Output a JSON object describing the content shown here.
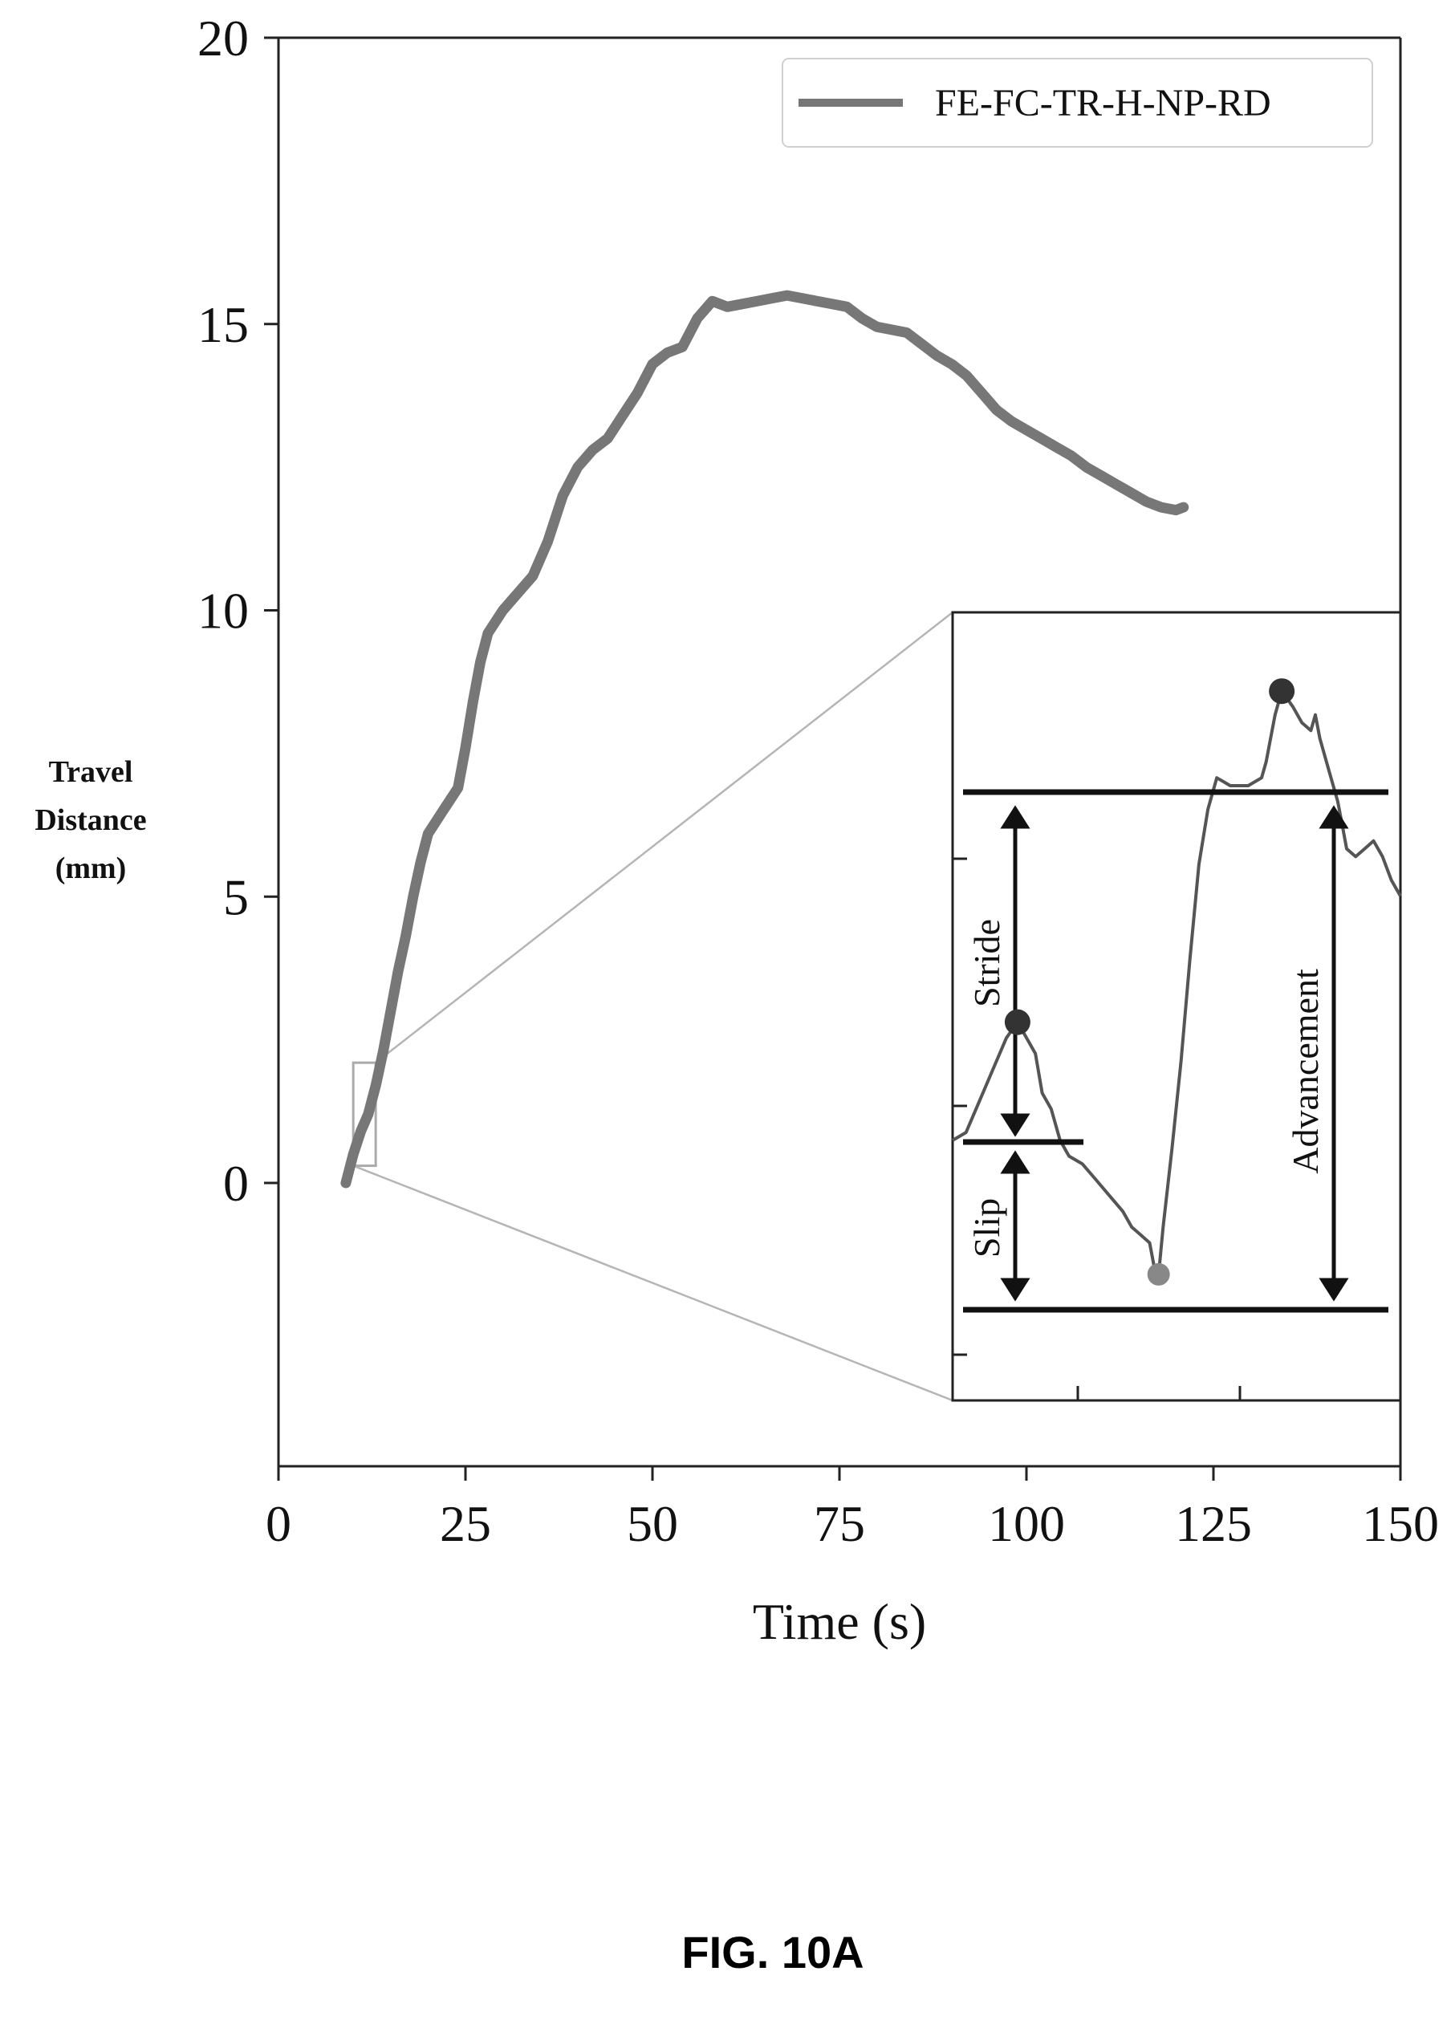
{
  "chart_data": {
    "type": "line",
    "title": "",
    "xlabel": "Time (s)",
    "ylabel": [
      "Travel",
      "Distance",
      "(mm)"
    ],
    "xlim": [
      0,
      150
    ],
    "ylim": [
      -5,
      20
    ],
    "xticks": [
      "0",
      "25",
      "50",
      "75",
      "100",
      "125",
      "150"
    ],
    "yticks": [
      "0",
      "5",
      "10",
      "15",
      "20"
    ],
    "grid": false,
    "legend_position": "top-right",
    "series": [
      {
        "name": "FE-FC-TR-H-NP-RD",
        "color": "#777777",
        "points": [
          [
            9,
            0.0
          ],
          [
            10,
            0.5
          ],
          [
            11,
            0.9
          ],
          [
            12,
            1.2
          ],
          [
            13,
            1.7
          ],
          [
            14,
            2.3
          ],
          [
            15,
            3.0
          ],
          [
            16,
            3.7
          ],
          [
            17,
            4.3
          ],
          [
            18,
            5.0
          ],
          [
            19,
            5.6
          ],
          [
            20,
            6.1
          ],
          [
            22,
            6.5
          ],
          [
            24,
            6.9
          ],
          [
            25,
            7.6
          ],
          [
            26,
            8.4
          ],
          [
            27,
            9.1
          ],
          [
            28,
            9.6
          ],
          [
            30,
            10.0
          ],
          [
            32,
            10.3
          ],
          [
            34,
            10.6
          ],
          [
            36,
            11.2
          ],
          [
            38,
            12.0
          ],
          [
            40,
            12.5
          ],
          [
            42,
            12.8
          ],
          [
            44,
            13.0
          ],
          [
            46,
            13.4
          ],
          [
            48,
            13.8
          ],
          [
            50,
            14.3
          ],
          [
            52,
            14.5
          ],
          [
            54,
            14.6
          ],
          [
            56,
            15.1
          ],
          [
            58,
            15.4
          ],
          [
            60,
            15.3
          ],
          [
            62,
            15.35
          ],
          [
            64,
            15.4
          ],
          [
            66,
            15.45
          ],
          [
            68,
            15.5
          ],
          [
            70,
            15.45
          ],
          [
            72,
            15.4
          ],
          [
            74,
            15.35
          ],
          [
            76,
            15.3
          ],
          [
            78,
            15.1
          ],
          [
            80,
            14.95
          ],
          [
            82,
            14.9
          ],
          [
            84,
            14.85
          ],
          [
            86,
            14.65
          ],
          [
            88,
            14.45
          ],
          [
            90,
            14.3
          ],
          [
            92,
            14.1
          ],
          [
            94,
            13.8
          ],
          [
            96,
            13.5
          ],
          [
            98,
            13.3
          ],
          [
            100,
            13.15
          ],
          [
            102,
            13.0
          ],
          [
            104,
            12.85
          ],
          [
            106,
            12.7
          ],
          [
            108,
            12.5
          ],
          [
            110,
            12.35
          ],
          [
            112,
            12.2
          ],
          [
            114,
            12.05
          ],
          [
            116,
            11.9
          ],
          [
            118,
            11.8
          ],
          [
            120,
            11.75
          ],
          [
            121,
            11.8
          ]
        ]
      }
    ],
    "inset": {
      "type": "line",
      "zoom_region": {
        "x": [
          10,
          13
        ],
        "y": [
          0.3,
          2.1
        ]
      },
      "annotations": [
        "Stride",
        "Slip",
        "Advancement"
      ],
      "trace": [
        [
          0.0,
          0.33
        ],
        [
          0.03,
          0.34
        ],
        [
          0.06,
          0.38
        ],
        [
          0.09,
          0.42
        ],
        [
          0.12,
          0.46
        ],
        [
          0.145,
          0.48
        ],
        [
          0.165,
          0.46
        ],
        [
          0.185,
          0.44
        ],
        [
          0.2,
          0.39
        ],
        [
          0.22,
          0.37
        ],
        [
          0.24,
          0.33
        ],
        [
          0.26,
          0.31
        ],
        [
          0.29,
          0.3
        ],
        [
          0.32,
          0.28
        ],
        [
          0.35,
          0.26
        ],
        [
          0.38,
          0.24
        ],
        [
          0.4,
          0.22
        ],
        [
          0.42,
          0.21
        ],
        [
          0.44,
          0.2
        ],
        [
          0.45,
          0.17
        ],
        [
          0.46,
          0.16
        ],
        [
          0.47,
          0.22
        ],
        [
          0.49,
          0.32
        ],
        [
          0.51,
          0.43
        ],
        [
          0.53,
          0.56
        ],
        [
          0.55,
          0.68
        ],
        [
          0.57,
          0.75
        ],
        [
          0.59,
          0.79
        ],
        [
          0.62,
          0.78
        ],
        [
          0.66,
          0.78
        ],
        [
          0.69,
          0.79
        ],
        [
          0.7,
          0.81
        ],
        [
          0.71,
          0.84
        ],
        [
          0.72,
          0.87
        ],
        [
          0.735,
          0.9
        ],
        [
          0.76,
          0.88
        ],
        [
          0.78,
          0.86
        ],
        [
          0.8,
          0.85
        ],
        [
          0.81,
          0.87
        ],
        [
          0.82,
          0.84
        ],
        [
          0.84,
          0.8
        ],
        [
          0.86,
          0.76
        ],
        [
          0.87,
          0.73
        ],
        [
          0.88,
          0.7
        ],
        [
          0.9,
          0.69
        ],
        [
          0.92,
          0.7
        ],
        [
          0.94,
          0.71
        ],
        [
          0.96,
          0.69
        ],
        [
          0.98,
          0.66
        ],
        [
          1.0,
          0.64
        ]
      ],
      "markers": [
        [
          0.145,
          0.48
        ],
        [
          0.46,
          0.16
        ],
        [
          0.735,
          0.9
        ]
      ]
    },
    "caption": "FIG. 10A"
  }
}
